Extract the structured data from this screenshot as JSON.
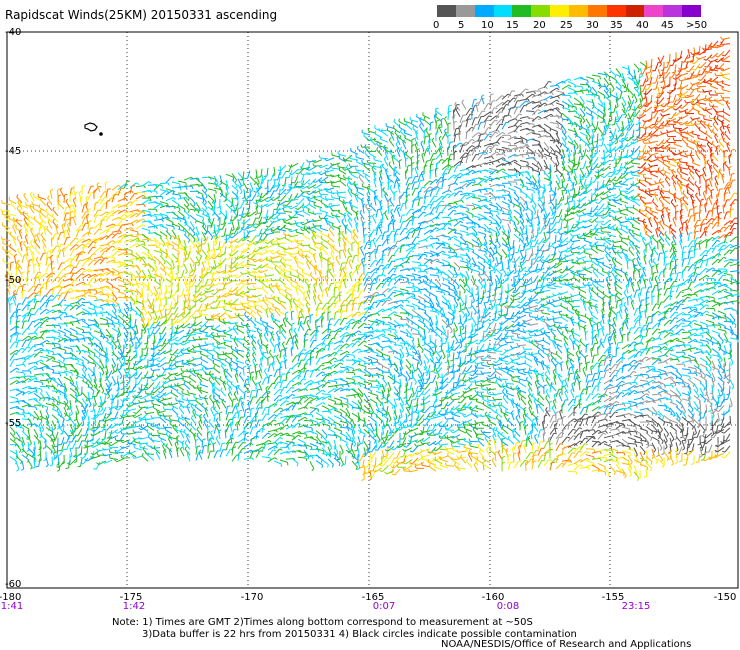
{
  "title": "Rapidscat Winds(25KM) 20150331 ascending",
  "colorbar": {
    "colors": [
      "#555555",
      "#999999",
      "#00aaff",
      "#00ddff",
      "#22bb22",
      "#88dd00",
      "#ffee00",
      "#ffbb00",
      "#ff7700",
      "#ff3300",
      "#cc2200",
      "#ee44cc",
      "#bb33dd",
      "#8800cc"
    ],
    "labels": [
      "0",
      "5",
      "10",
      "15",
      "20",
      "25",
      "30",
      "35",
      "40",
      "45",
      ">50 knots"
    ]
  },
  "map": {
    "lat_labels": [
      "-40",
      "-45",
      "-50",
      "-55",
      "-60"
    ],
    "lon_labels": [
      "-180",
      "-175",
      "-170",
      "-165",
      "-160",
      "-155",
      "-150"
    ],
    "time_labels": [
      "1:41",
      "1:42",
      "0:07",
      "0:08",
      "23:15"
    ]
  },
  "notes": {
    "line1": "Note: 1) Times are GMT 2)Times along bottom correspond to measurement at ~50S",
    "line2": "3)Data buffer is 22 hrs from 20150331 4) Black circles indicate possible contamination"
  },
  "credit": "NOAA/NESDIS/Office of Research and Applications"
}
